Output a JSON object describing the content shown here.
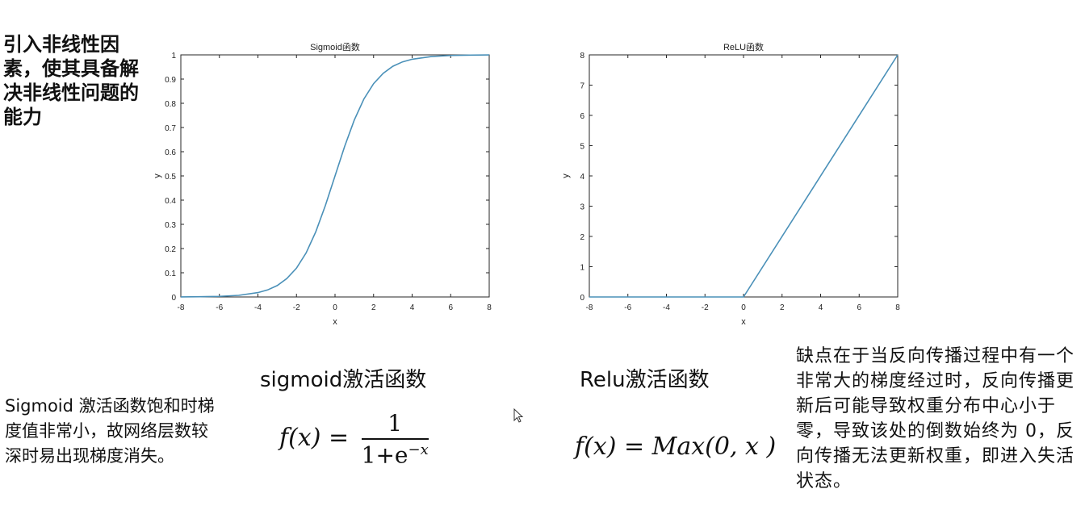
{
  "notes": {
    "top_left": "引入非线性因素，使其具备解决非线性问题的能力",
    "bottom_left": "Sigmoid 激活函数饱和时梯度值非常小，故网络层数较深时易出现梯度消失。",
    "bottom_right": "缺点在于当反向传播过程中有一个非常大的梯度经过时，反向传播更新后可能导致权重分布中心小于零，导致该处的倒数始终为 0，反向传播无法更新权重，即进入失活状态。"
  },
  "captions": {
    "sigmoid": "sigmoid激活函数",
    "relu": "Relu激活函数"
  },
  "formulas": {
    "sigmoid_lhs": "f(x) =",
    "sigmoid_num": "1",
    "sigmoid_den": "1+e",
    "sigmoid_exp": "−x",
    "relu": "f(x) = Max(0, x )"
  },
  "colors": {
    "line": "#4a90b8",
    "axis": "#262626"
  },
  "chart_data": [
    {
      "type": "line",
      "title": "Sigmoid函数",
      "xlabel": "x",
      "ylabel": "y",
      "xlim": [
        -8,
        8
      ],
      "ylim": [
        0,
        1
      ],
      "xticks": [
        -8,
        -6,
        -4,
        -2,
        0,
        2,
        4,
        6,
        8
      ],
      "yticks": [
        0,
        0.1,
        0.2,
        0.3,
        0.4,
        0.5,
        0.6,
        0.7,
        0.8,
        0.9,
        1
      ],
      "ytick_labels": [
        "0",
        "0.1",
        "0.2",
        "0.3",
        "0.4",
        "0.5",
        "0.6",
        "0.7",
        "0.8",
        "0.9",
        "1"
      ],
      "grid": false,
      "series": [
        {
          "x": [
            -8,
            -7,
            -6,
            -5,
            -4,
            -3.5,
            -3,
            -2.5,
            -2,
            -1.5,
            -1,
            -0.5,
            0,
            0.5,
            1,
            1.5,
            2,
            2.5,
            3,
            3.5,
            4,
            5,
            6,
            7,
            8
          ],
          "y": [
            0.0003,
            0.0009,
            0.0025,
            0.0067,
            0.018,
            0.029,
            0.047,
            0.076,
            0.119,
            0.182,
            0.269,
            0.378,
            0.5,
            0.622,
            0.731,
            0.818,
            0.881,
            0.924,
            0.953,
            0.971,
            0.982,
            0.993,
            0.9975,
            0.9991,
            0.9997
          ]
        }
      ]
    },
    {
      "type": "line",
      "title": "ReLU函数",
      "xlabel": "x",
      "ylabel": "y",
      "xlim": [
        -8,
        8
      ],
      "ylim": [
        0,
        8
      ],
      "xticks": [
        -8,
        -6,
        -4,
        -2,
        0,
        2,
        4,
        6,
        8
      ],
      "yticks": [
        0,
        1,
        2,
        3,
        4,
        5,
        6,
        7,
        8
      ],
      "ytick_labels": [
        "0",
        "1",
        "2",
        "3",
        "4",
        "5",
        "6",
        "7",
        "8"
      ],
      "grid": false,
      "series": [
        {
          "x": [
            -8,
            0,
            8
          ],
          "y": [
            0,
            0,
            8
          ]
        }
      ]
    }
  ]
}
